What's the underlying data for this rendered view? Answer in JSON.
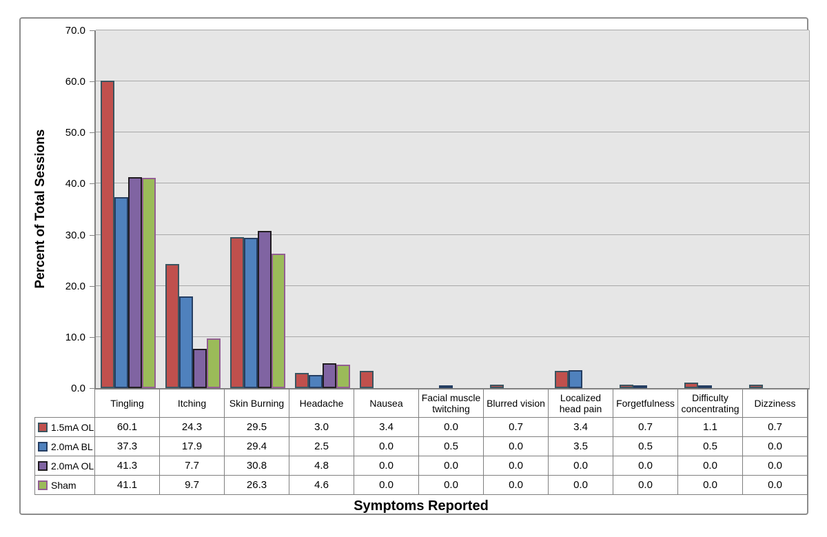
{
  "chart_data": {
    "type": "bar",
    "title": "",
    "xlabel": "Symptoms Reported",
    "ylabel": "Percent of Total Sessions",
    "ylim": [
      0,
      70
    ],
    "yticks": [
      0,
      10,
      20,
      30,
      40,
      50,
      60,
      70
    ],
    "ytick_format_decimals": 1,
    "grid": true,
    "legend_position": "data-table-left-column",
    "plot_bg": "#e6e6e6",
    "gridline_color": "#a8a8a8",
    "axis_color": "#808080",
    "table_border_color": "#7f7f7f",
    "categories": [
      "Tingling",
      "Itching",
      "Skin Burning",
      "Headache",
      "Nausea",
      "Facial muscle twitching",
      "Blurred vision",
      "Localized head pain",
      "Forgetfulness",
      "Difficulty concentrating",
      "Dizziness"
    ],
    "series": [
      {
        "name": "1.5mA OL",
        "fill": "#c0504d",
        "border": "#3a5560",
        "values": [
          60.1,
          24.3,
          29.5,
          3.0,
          3.4,
          0.0,
          0.7,
          3.4,
          0.7,
          1.1,
          0.7
        ]
      },
      {
        "name": "2.0mA BL",
        "fill": "#4f81bd",
        "border": "#253e62",
        "values": [
          37.3,
          17.9,
          29.4,
          2.5,
          0.0,
          0.5,
          0.0,
          3.5,
          0.5,
          0.5,
          0.0
        ]
      },
      {
        "name": "2.0mA OL",
        "fill": "#8064a2",
        "border": "#201c20",
        "values": [
          41.3,
          7.7,
          30.8,
          4.8,
          0.0,
          0.0,
          0.0,
          0.0,
          0.0,
          0.0,
          0.0
        ]
      },
      {
        "name": "Sham",
        "fill": "#9bbb59",
        "border": "#925e92",
        "values": [
          41.1,
          9.7,
          26.3,
          4.6,
          0.0,
          0.0,
          0.0,
          0.0,
          0.0,
          0.0,
          0.0
        ]
      }
    ]
  }
}
